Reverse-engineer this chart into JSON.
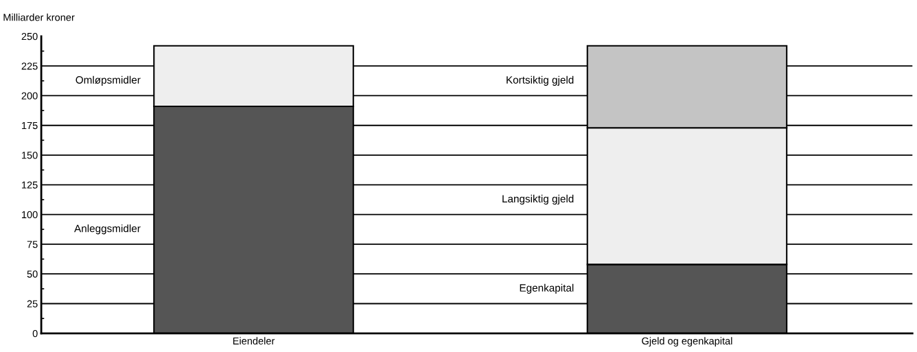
{
  "chart_data": {
    "type": "bar",
    "stacked": true,
    "ylabel": "Milliarder kroner",
    "categories": [
      "Eiendeler",
      "Gjeld og egenkapital"
    ],
    "series": [
      {
        "name": "Anleggsmidler",
        "color": "#555555",
        "values": [
          191,
          null
        ]
      },
      {
        "name": "Omløpsmidler",
        "color": "#eeeeee",
        "values": [
          51,
          null
        ]
      },
      {
        "name": "Egenkapital",
        "color": "#555555",
        "values": [
          null,
          58
        ]
      },
      {
        "name": "Langsiktig gjeld",
        "color": "#eeeeee",
        "values": [
          null,
          115
        ]
      },
      {
        "name": "Kortsiktig gjeld",
        "color": "#c4c4c4",
        "values": [
          null,
          69
        ]
      }
    ],
    "ylim": [
      0,
      250
    ],
    "yticks": [
      0,
      {
        "value": 12.5,
        "label": null
      },
      25,
      {
        "value": 37.5,
        "label": null
      },
      50,
      {
        "value": 62.5,
        "label": null
      },
      75,
      {
        "value": 87.5,
        "label": null
      },
      100,
      {
        "value": 112.5,
        "label": null
      },
      125,
      {
        "value": 137.5,
        "label": null
      },
      150,
      {
        "value": 162.5,
        "label": null
      },
      175,
      {
        "value": 187.5,
        "label": null
      },
      200,
      {
        "value": 212.5,
        "label": null
      },
      225,
      {
        "value": 237.5,
        "label": null
      },
      250
    ],
    "grid": "y",
    "legend": false
  }
}
